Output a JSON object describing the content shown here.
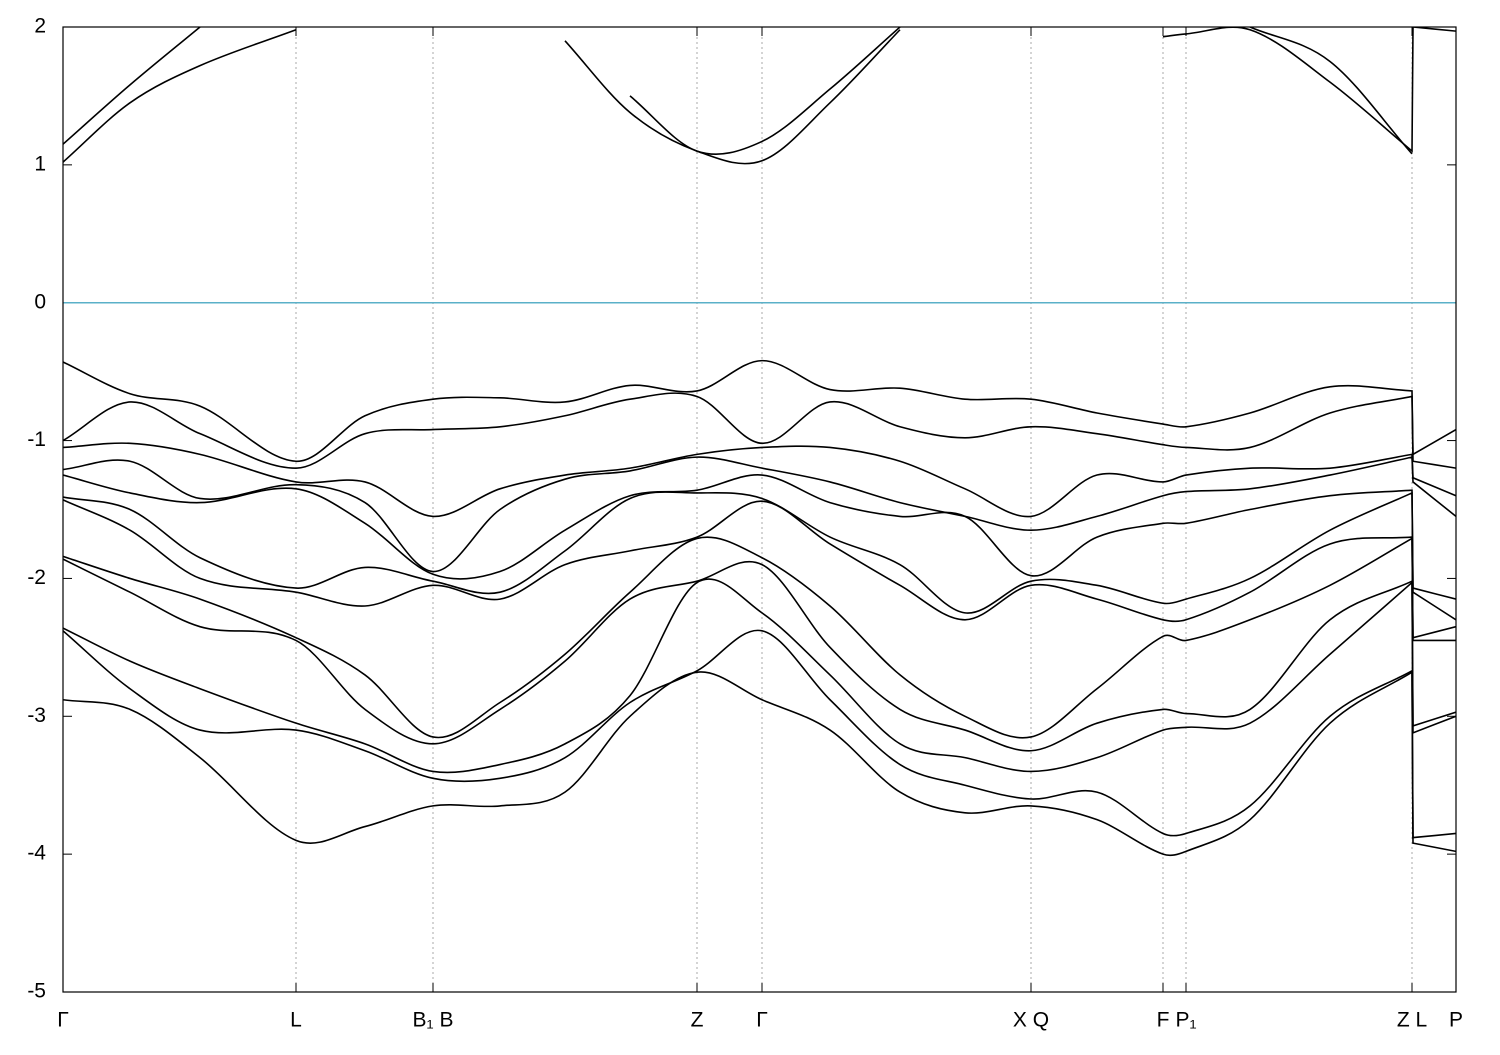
{
  "chart_data": {
    "type": "line",
    "x": [
      0,
      0.67,
      1.37,
      2.33,
      3.02,
      3.7,
      4.37,
      5.02,
      5.67,
      6.34,
      6.99,
      7.67,
      8.37,
      9.02,
      9.68,
      10.34,
      11.0,
      11.23,
      11.87,
      12.67,
      13.49,
      13.5,
      13.93
    ],
    "xlim": [
      0,
      13.93
    ],
    "xticks": [
      {
        "value": 0,
        "label": "Γ"
      },
      {
        "value": 2.33,
        "label": "L"
      },
      {
        "value": 3.7,
        "label": "B₁ B"
      },
      {
        "value": 6.34,
        "label": "Z"
      },
      {
        "value": 6.99,
        "label": "Γ"
      },
      {
        "value": 9.68,
        "label": "X Q"
      },
      {
        "value": 11.0,
        "label": "F"
      },
      {
        "value": 11.23,
        "label": "P₁"
      },
      {
        "value": 13.49,
        "label": "Z  L"
      },
      {
        "value": 13.93,
        "label": "P"
      }
    ],
    "ylim": [
      -5,
      2
    ],
    "yticks": [
      -5,
      -4,
      -3,
      -2,
      -1,
      0,
      1,
      2
    ],
    "grid": true,
    "zero_line": {
      "y": 0,
      "color": "#5ab0c8"
    },
    "series": [
      {
        "color": "#000000",
        "values": [
          1.02,
          1.45,
          1.72,
          1.98,
          null,
          null,
          null,
          1.9,
          1.38,
          1.1,
          1.03,
          1.45,
          1.98,
          null,
          null,
          null,
          1.93,
          1.95,
          1.98,
          1.6,
          1.1,
          2.0,
          1.97
        ]
      },
      {
        "color": "#000000",
        "values": [
          1.15,
          1.58,
          2.0,
          null,
          null,
          null,
          null,
          null,
          1.5,
          1.1,
          1.17,
          1.55,
          2.0,
          null,
          null,
          null,
          null,
          null,
          2.0,
          1.75,
          1.08,
          null,
          null
        ]
      },
      {
        "color": "#000000",
        "values": [
          -0.43,
          -0.66,
          -0.75,
          -1.15,
          -0.82,
          -0.7,
          -0.69,
          -0.72,
          -0.6,
          -0.64,
          -0.42,
          -0.63,
          -0.62,
          -0.7,
          -0.7,
          -0.8,
          -0.88,
          -0.9,
          -0.8,
          -0.61,
          -0.64,
          -1.1,
          -0.92
        ]
      },
      {
        "color": "#000000",
        "values": [
          -1.0,
          -0.72,
          -0.95,
          -1.2,
          -0.95,
          -0.92,
          -0.9,
          -0.82,
          -0.7,
          -0.68,
          -1.02,
          -0.72,
          -0.9,
          -0.98,
          -0.9,
          -0.95,
          -1.03,
          -1.05,
          -1.05,
          -0.8,
          -0.68,
          -1.15,
          -1.2
        ]
      },
      {
        "color": "#000000",
        "values": [
          -1.05,
          -1.02,
          -1.1,
          -1.3,
          -1.3,
          -1.55,
          -1.35,
          -1.25,
          -1.2,
          -1.1,
          -1.05,
          -1.05,
          -1.15,
          -1.35,
          -1.55,
          -1.25,
          -1.3,
          -1.25,
          -1.2,
          -1.2,
          -1.1,
          -1.27,
          -1.4
        ]
      },
      {
        "color": "#000000",
        "values": [
          -1.21,
          -1.15,
          -1.42,
          -1.32,
          -1.45,
          -1.95,
          -1.5,
          -1.28,
          -1.22,
          -1.12,
          -1.2,
          -1.3,
          -1.45,
          -1.55,
          -1.65,
          -1.55,
          -1.4,
          -1.37,
          -1.35,
          -1.25,
          -1.12,
          -1.3,
          -1.55
        ]
      },
      {
        "color": "#000000",
        "values": [
          -1.25,
          -1.38,
          -1.45,
          -1.35,
          -1.6,
          -1.97,
          -1.95,
          -1.65,
          -1.4,
          -1.36,
          -1.25,
          -1.45,
          -1.55,
          -1.55,
          -1.98,
          -1.7,
          -1.6,
          -1.6,
          -1.5,
          -1.4,
          -1.36,
          -2.07,
          -2.15
        ]
      },
      {
        "color": "#000000",
        "values": [
          -1.41,
          -1.5,
          -1.85,
          -2.07,
          -1.92,
          -2.02,
          -2.1,
          -1.8,
          -1.42,
          -1.38,
          -1.42,
          -1.7,
          -1.9,
          -2.25,
          -2.02,
          -2.05,
          -2.18,
          -2.15,
          -2.0,
          -1.65,
          -1.38,
          -2.1,
          -2.3
        ]
      },
      {
        "color": "#000000",
        "values": [
          -1.43,
          -1.65,
          -2.0,
          -2.1,
          -2.2,
          -2.05,
          -2.15,
          -1.9,
          -1.8,
          -1.7,
          -1.44,
          -1.75,
          -2.05,
          -2.3,
          -2.05,
          -2.15,
          -2.3,
          -2.3,
          -2.1,
          -1.75,
          -1.7,
          -2.43,
          -2.35
        ]
      },
      {
        "color": "#000000",
        "values": [
          -1.84,
          -2.0,
          -2.15,
          -2.43,
          -2.7,
          -3.15,
          -2.9,
          -2.55,
          -2.1,
          -1.71,
          -1.85,
          -2.2,
          -2.7,
          -3.0,
          -3.15,
          -2.8,
          -2.42,
          -2.45,
          -2.3,
          -2.05,
          -1.71,
          -2.45,
          -2.45
        ]
      },
      {
        "color": "#000000",
        "values": [
          -1.86,
          -2.1,
          -2.35,
          -2.45,
          -2.95,
          -3.2,
          -2.95,
          -2.6,
          -2.15,
          -2.02,
          -1.9,
          -2.5,
          -2.95,
          -3.1,
          -3.25,
          -3.05,
          -2.95,
          -2.98,
          -2.95,
          -2.3,
          -2.02,
          -3.07,
          -2.97
        ]
      },
      {
        "color": "#000000",
        "values": [
          -2.36,
          -2.6,
          -2.8,
          -3.05,
          -3.2,
          -3.4,
          -3.35,
          -3.2,
          -2.85,
          -2.03,
          -2.25,
          -2.7,
          -3.2,
          -3.3,
          -3.4,
          -3.3,
          -3.1,
          -3.08,
          -3.05,
          -2.55,
          -2.03,
          -3.12,
          -3.0
        ]
      },
      {
        "color": "#000000",
        "values": [
          -2.38,
          -2.8,
          -3.1,
          -3.1,
          -3.25,
          -3.45,
          -3.45,
          -3.3,
          -2.9,
          -2.67,
          -2.38,
          -2.88,
          -3.35,
          -3.5,
          -3.6,
          -3.55,
          -3.85,
          -3.85,
          -3.65,
          -3.0,
          -2.67,
          -3.88,
          -3.85
        ]
      },
      {
        "color": "#000000",
        "values": [
          -2.88,
          -2.95,
          -3.3,
          -3.9,
          -3.8,
          -3.65,
          -3.65,
          -3.55,
          -3.0,
          -2.68,
          -2.88,
          -3.1,
          -3.55,
          -3.7,
          -3.65,
          -3.75,
          -4.0,
          -3.98,
          -3.75,
          -3.05,
          -2.68,
          -3.92,
          -3.98
        ]
      }
    ]
  }
}
